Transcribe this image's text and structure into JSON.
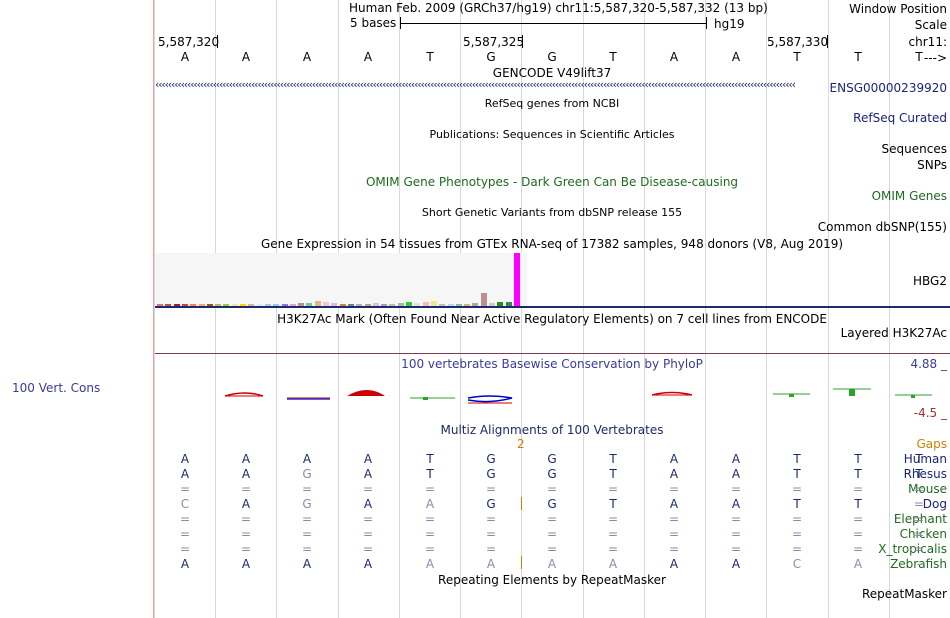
{
  "header": {
    "window_position_label": "Window Position",
    "window_position_value": "Human Feb. 2009 (GRCh37/hg19)   chr11:5,587,320-5,587,332 (13 bp)",
    "scale_label": "Scale",
    "scale_text": "5 bases",
    "scale_assembly": "hg19",
    "chrom_label": "chr11:",
    "ticks": [
      "5,587,320",
      "5,587,325",
      "5,587,330"
    ],
    "arrow_label": "--->"
  },
  "sequence": [
    "A",
    "A",
    "A",
    "A",
    "T",
    "G",
    "G",
    "T",
    "A",
    "A",
    "T",
    "T",
    "T"
  ],
  "tracks": {
    "gencode_title": "GENCODE V49lift37",
    "gencode_item": "ENSG00000239920",
    "refseq_title": "RefSeq genes from NCBI",
    "refseq_label": "RefSeq Curated",
    "pubs_title": "Publications: Sequences in Scientific Articles",
    "sequences_label": "Sequences",
    "snps_label": "SNPs",
    "omim_title": "OMIM Gene Phenotypes - Dark Green Can Be Disease-causing",
    "omim_label": "OMIM Genes",
    "dbsnp_title": "Short Genetic Variants from dbSNP release 155",
    "dbsnp_label": "Common dbSNP(155)",
    "gtex_title": "Gene Expression in 54 tissues from GTEx RNA-seq of 17382 samples, 948 donors (V8, Aug 2019)",
    "gtex_label": "HBG2",
    "h3k27_title": "H3K27Ac Mark (Often Found Near Active Regulatory Elements) on 7 cell lines from ENCODE",
    "h3k27_label": "Layered H3K27Ac",
    "cons_title": "100 vertebrates Basewise Conservation by PhyloP",
    "cons_label": "100 Vert. Cons",
    "cons_max": "4.88 _",
    "cons_min": "-4.5 _",
    "multiz_title": "Multiz Alignments of 100 Vertebrates",
    "gaps_label": "Gaps",
    "gaps_value": "2",
    "rmsk_title": "Repeating Elements by RepeatMasker",
    "rmsk_label": "RepeatMasker"
  },
  "colors": {
    "navy": "#1a237e",
    "green": "#1e6b1e",
    "orange": "#d08000",
    "magenta": "#e000e0"
  },
  "gtex_bars": [
    {
      "color": "#e87070",
      "v": 1
    },
    {
      "color": "#c05050",
      "v": 1
    },
    {
      "color": "#8b2252",
      "v": 2
    },
    {
      "color": "#cc4444",
      "v": 2
    },
    {
      "color": "#ff7f50",
      "v": 1
    },
    {
      "color": "#ffa07a",
      "v": 1
    },
    {
      "color": "#a0522d",
      "v": 1
    },
    {
      "color": "#bdb76b",
      "v": 1
    },
    {
      "color": "#9acd32",
      "v": 2
    },
    {
      "color": "#eee8aa",
      "v": 2
    },
    {
      "color": "#ffd700",
      "v": 2
    },
    {
      "color": "#cdb79e",
      "v": 2
    },
    {
      "color": "#e6e6fa",
      "v": 2
    },
    {
      "color": "#b0c4de",
      "v": 2
    },
    {
      "color": "#87cefa",
      "v": 2
    },
    {
      "color": "#9370db",
      "v": 1
    },
    {
      "color": "#dda0dd",
      "v": 1
    },
    {
      "color": "#bc8f8f",
      "v": 3
    },
    {
      "color": "#66cdaa",
      "v": 3
    },
    {
      "color": "#deb887",
      "v": 5
    },
    {
      "color": "#ffc0cb",
      "v": 4
    },
    {
      "color": "#d8bfd8",
      "v": 3
    },
    {
      "color": "#cd853f",
      "v": 2
    },
    {
      "color": "#708090",
      "v": 2
    },
    {
      "color": "#b0b0b0",
      "v": 2
    },
    {
      "color": "#c0a080",
      "v": 2
    },
    {
      "color": "#e0c0e0",
      "v": 3
    },
    {
      "color": "#a0a0c0",
      "v": 2
    },
    {
      "color": "#c0c0a0",
      "v": 2
    },
    {
      "color": "#a0c0a0",
      "v": 3
    },
    {
      "color": "#32cd32",
      "v": 4
    },
    {
      "color": "#e0e0e0",
      "v": 3
    },
    {
      "color": "#ffb6c1",
      "v": 4
    },
    {
      "color": "#f0e68c",
      "v": 5
    },
    {
      "color": "#c0c0c0",
      "v": 2
    },
    {
      "color": "#b0e0e6",
      "v": 2
    },
    {
      "color": "#8fbc8f",
      "v": 2
    },
    {
      "color": "#d2b48c",
      "v": 2
    },
    {
      "color": "#a9a9a9",
      "v": 3
    },
    {
      "color": "#bc9090",
      "v": 12
    },
    {
      "color": "#cccccc",
      "v": 3
    },
    {
      "color": "#228b22",
      "v": 4
    },
    {
      "color": "#2e8b57",
      "v": 4
    },
    {
      "color": "#ff00ff",
      "v": 50
    }
  ],
  "multiz": {
    "species": [
      {
        "name": "Human",
        "color": "navy"
      },
      {
        "name": "Rhesus",
        "color": "navy"
      },
      {
        "name": "Mouse",
        "color": "green"
      },
      {
        "name": "Dog",
        "color": "navy"
      },
      {
        "name": "Elephant",
        "color": "green"
      },
      {
        "name": "Chicken",
        "color": "green"
      },
      {
        "name": "X_tropicalis",
        "color": "green"
      },
      {
        "name": "Zebrafish",
        "color": "green"
      }
    ],
    "rows": [
      [
        "A",
        "A",
        "A",
        "A",
        "T",
        "G",
        "G",
        "T",
        "A",
        "A",
        "T",
        "T",
        "T"
      ],
      [
        "A",
        "A",
        "G",
        "A",
        "T",
        "G",
        "G",
        "T",
        "A",
        "A",
        "T",
        "T",
        "T"
      ],
      [
        "=",
        "=",
        "=",
        "=",
        "=",
        "=",
        "=",
        "=",
        "=",
        "=",
        "=",
        "=",
        "="
      ],
      [
        "C",
        "A",
        "G",
        "A",
        "A",
        "G",
        "G",
        "T",
        "A",
        "A",
        "T",
        "T",
        "="
      ],
      [
        "=",
        "=",
        "=",
        "=",
        "=",
        "=",
        "=",
        "=",
        "=",
        "=",
        "=",
        "=",
        "="
      ],
      [
        "=",
        "=",
        "=",
        "=",
        "=",
        "=",
        "=",
        "=",
        "=",
        "=",
        "=",
        "=",
        "="
      ],
      [
        "=",
        "=",
        "=",
        "=",
        "=",
        "=",
        "=",
        "=",
        "=",
        "=",
        "=",
        "=",
        "="
      ],
      [
        "A",
        "A",
        "A",
        "A",
        "A",
        "A",
        "A",
        "A",
        "A",
        "A",
        "C",
        "A",
        "-"
      ]
    ],
    "gray_cells": [
      [
        1,
        2
      ],
      [
        3,
        0
      ],
      [
        3,
        2
      ],
      [
        3,
        4
      ],
      [
        7,
        4
      ],
      [
        7,
        5
      ],
      [
        7,
        6
      ],
      [
        7,
        7
      ],
      [
        7,
        10
      ],
      [
        7,
        11
      ],
      [
        7,
        12
      ]
    ]
  }
}
